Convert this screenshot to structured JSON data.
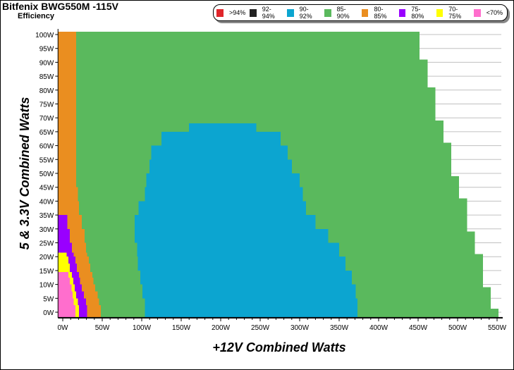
{
  "chart_data": {
    "type": "heatmap",
    "title": "Bitfenix BWG550M -115V",
    "subtitle": "Efficiency",
    "xlabel": "+12V Combined Watts",
    "ylabel": "5 & 3.3V Combined Watts",
    "xlim": [
      -6,
      560
    ],
    "ylim": [
      -2,
      101
    ],
    "x_ticks": [
      0,
      50,
      100,
      150,
      200,
      250,
      300,
      350,
      400,
      450,
      500,
      550
    ],
    "x_tick_labels": [
      "0W",
      "50W",
      "100W",
      "150W",
      "200W",
      "250W",
      "300W",
      "350W",
      "400W",
      "450W",
      "500W",
      "550W"
    ],
    "y_ticks": [
      0,
      5,
      10,
      15,
      20,
      25,
      30,
      35,
      40,
      45,
      50,
      55,
      60,
      65,
      70,
      75,
      80,
      85,
      90,
      95,
      100
    ],
    "y_tick_labels": [
      "0W",
      "5W",
      "10W",
      "15W",
      "20W",
      "25W",
      "30W",
      "35W",
      "40W",
      "45W",
      "50W",
      "55W",
      "60W",
      "65W",
      "70W",
      "75W",
      "80W",
      "85W",
      "90W",
      "95W",
      "100W"
    ],
    "legend": [
      {
        "label": ">94%",
        "color": "#e0262b"
      },
      {
        "label": "92-94%",
        "color": "#222222"
      },
      {
        "label": "90-92%",
        "color": "#0ca5d0"
      },
      {
        "label": "85-90%",
        "color": "#5ab95d"
      },
      {
        "label": "80-85%",
        "color": "#ea8e20"
      },
      {
        "label": "75-80%",
        "color": "#9900ff"
      },
      {
        "label": "70-75%",
        "color": "#ffff00"
      },
      {
        "label": "<70%",
        "color": "#ff6ecd"
      }
    ],
    "outer_limit_85_90": [
      [
        1.3,
        552
      ],
      [
        9,
        542
      ],
      [
        21,
        532
      ],
      [
        29,
        522
      ],
      [
        41,
        512
      ],
      [
        49,
        502
      ],
      [
        61,
        492
      ],
      [
        69,
        482
      ],
      [
        81,
        472
      ],
      [
        91,
        462
      ],
      [
        101,
        452
      ]
    ],
    "low_load_rows": [
      {
        "y": [
          -2,
          2.5
        ],
        "segs": [
          [
            "<70%",
            16
          ],
          [
            "70-75%",
            20.5
          ],
          [
            "75-80%",
            31
          ],
          [
            "80-85%",
            48
          ]
        ]
      },
      {
        "y": [
          2.5,
          5
        ],
        "segs": [
          [
            "<70%",
            14
          ],
          [
            "70-75%",
            19
          ],
          [
            "75-80%",
            29.5
          ],
          [
            "80-85%",
            46
          ]
        ]
      },
      {
        "y": [
          5,
          7.5
        ],
        "segs": [
          [
            "<70%",
            12.5
          ],
          [
            "70-75%",
            17
          ],
          [
            "75-80%",
            27
          ],
          [
            "80-85%",
            44
          ]
        ]
      },
      {
        "y": [
          7.5,
          10
        ],
        "segs": [
          [
            "<70%",
            11
          ],
          [
            "70-75%",
            15
          ],
          [
            "75-80%",
            24
          ],
          [
            "80-85%",
            41
          ]
        ]
      },
      {
        "y": [
          10,
          12.5
        ],
        "segs": [
          [
            "<70%",
            9
          ],
          [
            "70-75%",
            13.5
          ],
          [
            "75-80%",
            22
          ],
          [
            "80-85%",
            39
          ]
        ]
      },
      {
        "y": [
          12.5,
          14.5
        ],
        "segs": [
          [
            "<70%",
            7
          ],
          [
            "70-75%",
            11.5
          ],
          [
            "75-80%",
            20.5
          ],
          [
            "80-85%",
            37.5
          ]
        ]
      },
      {
        "y": [
          14.5,
          17.5
        ],
        "segs": [
          [
            "70-75%",
            9
          ],
          [
            "75-80%",
            18
          ],
          [
            "80-85%",
            35
          ]
        ]
      },
      {
        "y": [
          17.5,
          20
        ],
        "segs": [
          [
            "70-75%",
            7
          ],
          [
            "75-80%",
            16
          ],
          [
            "80-85%",
            33
          ]
        ]
      },
      {
        "y": [
          20,
          21.5
        ],
        "segs": [
          [
            "70-75%",
            5
          ],
          [
            "75-80%",
            14
          ],
          [
            "80-85%",
            31
          ]
        ]
      },
      {
        "y": [
          21.5,
          25
        ],
        "segs": [
          [
            "75-80%",
            11.5
          ],
          [
            "80-85%",
            29.5
          ]
        ]
      },
      {
        "y": [
          25,
          30
        ],
        "segs": [
          [
            "75-80%",
            9
          ],
          [
            "80-85%",
            27.5
          ]
        ]
      },
      {
        "y": [
          30,
          35
        ],
        "segs": [
          [
            "75-80%",
            6
          ],
          [
            "80-85%",
            24
          ]
        ]
      },
      {
        "y": [
          35,
          40
        ],
        "segs": [
          [
            "80-85%",
            20.5
          ]
        ]
      },
      {
        "y": [
          40,
          45
        ],
        "segs": [
          [
            "80-85%",
            19
          ]
        ]
      },
      {
        "y": [
          45,
          101
        ],
        "segs": [
          [
            "80-85%",
            17
          ]
        ]
      }
    ],
    "region_90_92_rows": [
      {
        "y": [
          -2,
          5
        ],
        "x": [
          104,
          373
        ]
      },
      {
        "y": [
          5,
          10
        ],
        "x": [
          101,
          371
        ]
      },
      {
        "y": [
          10,
          15
        ],
        "x": [
          98,
          366
        ]
      },
      {
        "y": [
          15,
          20
        ],
        "x": [
          95,
          358
        ]
      },
      {
        "y": [
          20,
          25
        ],
        "x": [
          94,
          350
        ]
      },
      {
        "y": [
          25,
          30
        ],
        "x": [
          91,
          336
        ]
      },
      {
        "y": [
          30,
          35
        ],
        "x": [
          91,
          320
        ]
      },
      {
        "y": [
          35,
          40
        ],
        "x": [
          96,
          308
        ]
      },
      {
        "y": [
          40,
          45
        ],
        "x": [
          104,
          304
        ]
      },
      {
        "y": [
          45,
          50
        ],
        "x": [
          106,
          300
        ]
      },
      {
        "y": [
          50,
          55
        ],
        "x": [
          110,
          290
        ]
      },
      {
        "y": [
          55,
          60
        ],
        "x": [
          112,
          285
        ]
      },
      {
        "y": [
          60,
          65
        ],
        "x": [
          125,
          276
        ]
      },
      {
        "y": [
          65,
          68
        ],
        "x": [
          160,
          245
        ]
      }
    ]
  }
}
